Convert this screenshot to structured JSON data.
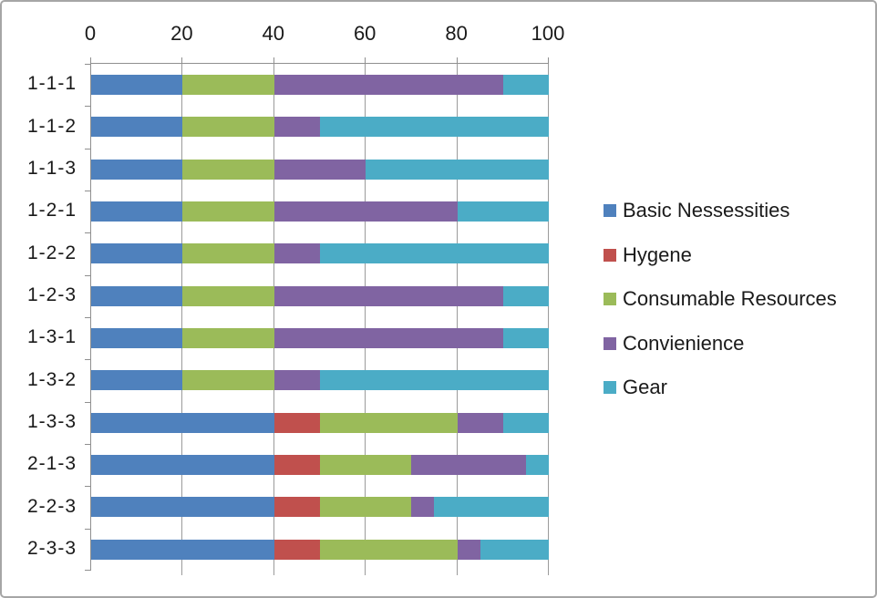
{
  "chart_data": {
    "type": "bar",
    "orientation": "horizontal",
    "stacked": true,
    "title": "",
    "categories": [
      "1-1-1",
      "1-1-2",
      "1-1-3",
      "1-2-1",
      "1-2-2",
      "1-2-3",
      "1-3-1",
      "1-3-2",
      "1-3-3",
      "2-1-3",
      "2-2-3",
      "2-3-3"
    ],
    "series": [
      {
        "name": "Basic Nessessities",
        "color": "#4F81BD",
        "values": [
          20,
          20,
          20,
          20,
          20,
          20,
          20,
          20,
          40,
          40,
          40,
          40
        ]
      },
      {
        "name": "Hygene",
        "color": "#C0504D",
        "values": [
          0,
          0,
          0,
          0,
          0,
          0,
          0,
          0,
          10,
          10,
          10,
          10
        ]
      },
      {
        "name": "Consumable Resources",
        "color": "#9BBB59",
        "values": [
          20,
          20,
          20,
          20,
          20,
          20,
          20,
          20,
          30,
          20,
          20,
          30
        ]
      },
      {
        "name": "Convienience",
        "color": "#8064A2",
        "values": [
          50,
          10,
          20,
          40,
          10,
          50,
          50,
          10,
          10,
          25,
          5,
          5
        ]
      },
      {
        "name": "Gear",
        "color": "#4BACC6",
        "values": [
          10,
          50,
          40,
          20,
          50,
          10,
          10,
          50,
          10,
          5,
          25,
          15
        ]
      }
    ],
    "x_axis": {
      "min": 0,
      "max": 100,
      "ticks": [
        0,
        20,
        40,
        60,
        80,
        100
      ]
    },
    "grid": true,
    "legend_position": "right"
  },
  "colors": {
    "axis_line": "#8f8f8f",
    "gridline": "#9b9b9b",
    "text": "#1a1a1a",
    "chart_border": "#a6a6a6",
    "background": "#ffffff"
  }
}
